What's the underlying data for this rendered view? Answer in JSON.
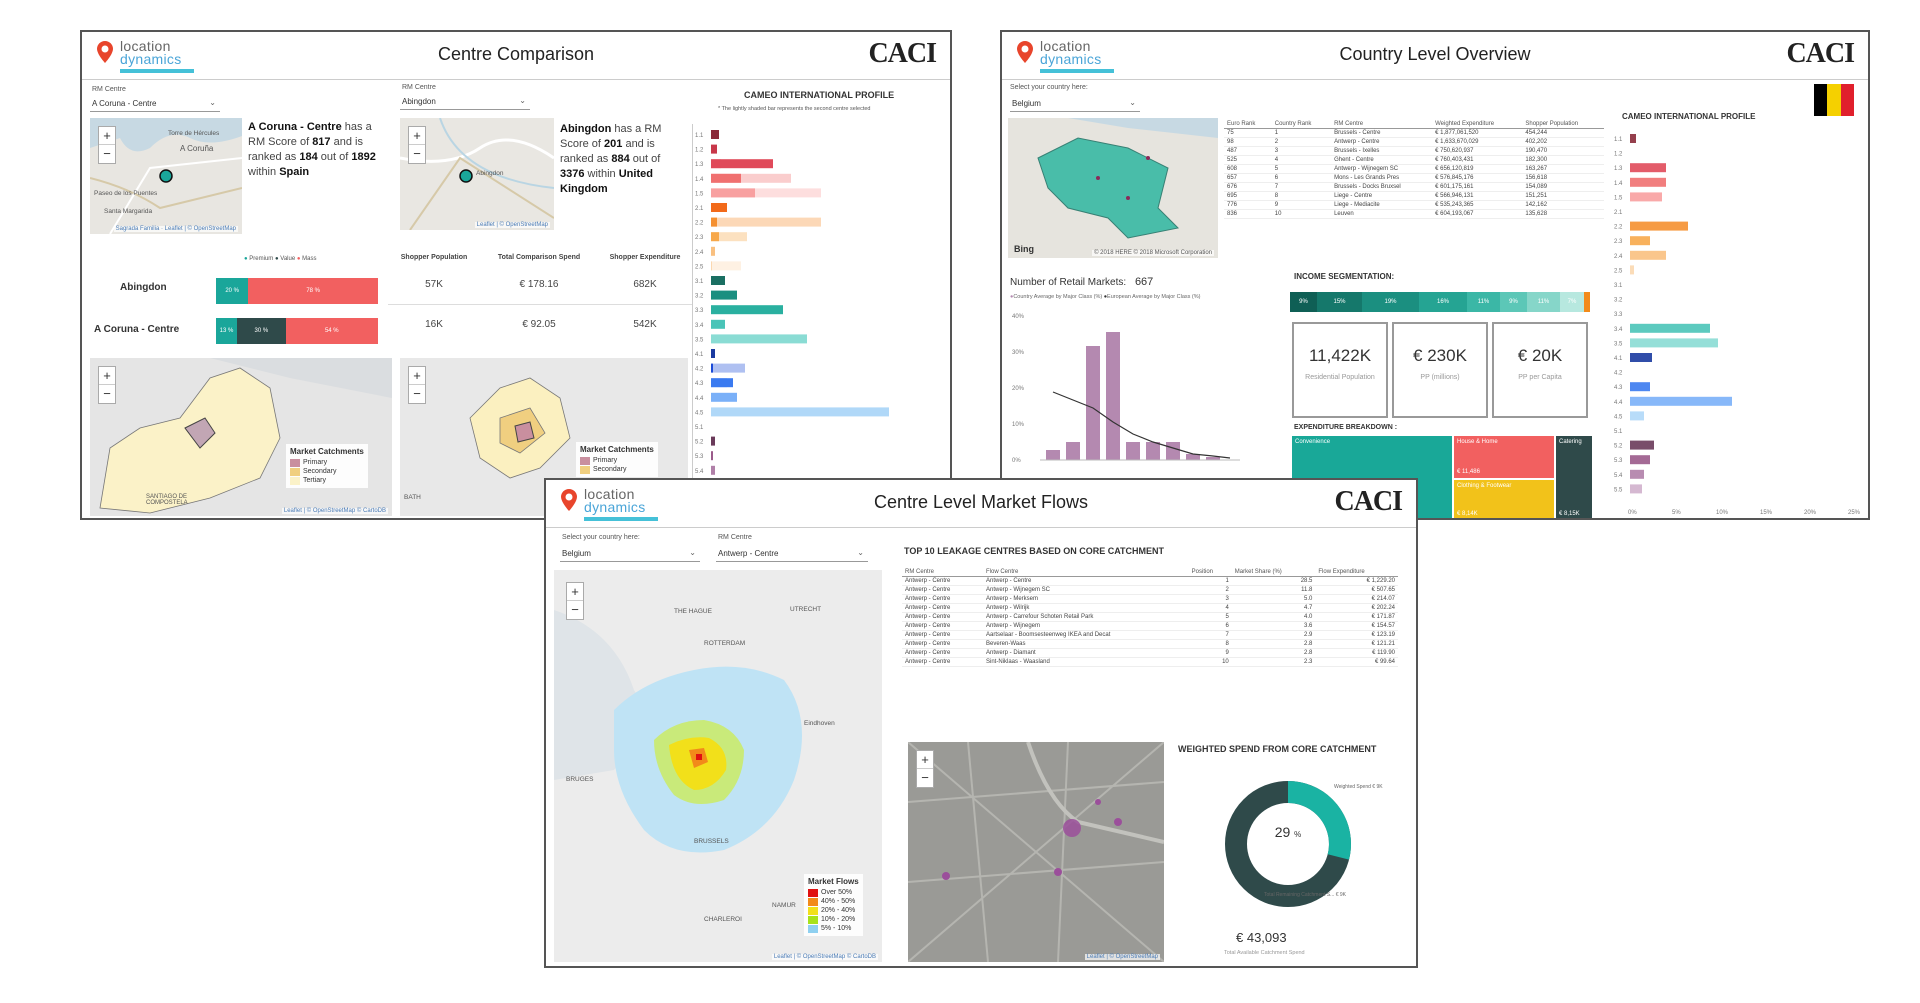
{
  "panel_left": {
    "title": "Centre Comparison",
    "logo_line1": "location",
    "logo_line2": "dynamics",
    "brand": "CACI",
    "dd1_label": "RM Centre",
    "dd1_value": "A Coruna - Centre",
    "dd2_label": "RM Centre",
    "dd2_value": "Abingdon",
    "map_a_labels": [
      "Torre de Hércules",
      "A Coruña",
      "Paseo de los Puentes",
      "Santa Margarida"
    ],
    "map_a_attrib": "Sagrada Familia · Leaflet | © OpenStreetMap",
    "map_b_labels": [
      "Abingdon"
    ],
    "map_b_attrib": "Leaflet | © OpenStreetMap",
    "info_a_name": "A Coruna - Centre",
    "info_a_t1": " has a RM Score of ",
    "info_a_score": "817",
    "info_a_t2": " and is ranked as ",
    "info_a_rank": "184",
    "info_a_t3": " out of ",
    "info_a_total": "1892",
    "info_a_t4": " within ",
    "info_a_country": "Spain",
    "info_b_name": "Abingdon",
    "info_b_t1": " has a RM Score of ",
    "info_b_score": "201",
    "info_b_t2": " and is ranked as ",
    "info_b_rank": "884",
    "info_b_t3": " out of ",
    "info_b_total": "3376",
    "info_b_t4": " within ",
    "info_b_country": "United Kingdom",
    "seg_legend": [
      "Premium",
      "Value",
      "Mass"
    ],
    "seg_rows": [
      {
        "name": "Abingdon",
        "premium_label": "20 %",
        "premium": 20,
        "value_label": "",
        "value": 0,
        "mass_label": "78 %",
        "mass": 78
      },
      {
        "name": "A Coruna - Centre",
        "premium_label": "13 %",
        "premium": 13,
        "value_label": "30 %",
        "value": 30,
        "mass_label": "54 %",
        "mass": 54
      }
    ],
    "stats_headers": [
      "Shopper Population",
      "Total Comparison Spend",
      "Shopper Expenditure"
    ],
    "stats_rows": [
      [
        "57K",
        "€ 178.16",
        "682K"
      ],
      [
        "16K",
        "€ 92.05",
        "542K"
      ]
    ],
    "cameo_title": "CAMEO INTERNATIONAL PROFILE",
    "cameo_note": "* The lightly shaded bar represents the second centre selected",
    "catch_legend_title": "Market Catchments",
    "catch_legend": [
      "Primary",
      "Secondary",
      "Tertiary"
    ],
    "map_c_attrib": "Leaflet | © OpenStreetMap © CartoDB",
    "map_c_label": "SANTIAGO DE COMPOSTELA",
    "map_d_label": "BATH",
    "map_d_legend_title": "Market Catchments",
    "map_d_legend": [
      "Primary",
      "Secondary"
    ]
  },
  "panel_right": {
    "title": "Country Level Overview",
    "logo_line1": "location",
    "logo_line2": "dynamics",
    "brand": "CACI",
    "dd_label": "Select your country here:",
    "dd_value": "Belgium",
    "map_attrib": "© 2018 HERE © 2018 Microsoft Corporation",
    "map_bing": "Bing",
    "table_headers": [
      "Euro Rank",
      "Country Rank",
      "RM Centre",
      "Weighted Expenditure",
      "Shopper Population"
    ],
    "table_rows": [
      [
        "75",
        "1",
        "Brussels - Centre",
        "€ 1,877,061,520",
        "454,244"
      ],
      [
        "98",
        "2",
        "Antwerp - Centre",
        "€ 1,633,670,029",
        "402,202"
      ],
      [
        "487",
        "3",
        "Brussels - Ixelles",
        "€ 750,620,937",
        "190,470"
      ],
      [
        "525",
        "4",
        "Ghent - Centre",
        "€ 760,403,431",
        "182,300"
      ],
      [
        "608",
        "5",
        "Antwerp - Wijnegem SC",
        "€ 656,120,819",
        "163,267"
      ],
      [
        "657",
        "6",
        "Mons - Les Grands Pres",
        "€ 576,845,176",
        "156,618"
      ],
      [
        "676",
        "7",
        "Brussels - Docks Bruxsel",
        "€ 601,175,161",
        "154,089"
      ],
      [
        "695",
        "8",
        "Liege - Centre",
        "€ 566,946,131",
        "151,251"
      ],
      [
        "776",
        "9",
        "Liege - Mediacite",
        "€ 535,243,365",
        "142,162"
      ],
      [
        "836",
        "10",
        "Leuven",
        "€ 604,193,067",
        "135,628"
      ]
    ],
    "retail_markets_label": "Number of Retail Markets:",
    "retail_markets_value": "667",
    "chart_legend": [
      "Country Average by Major Class (%)",
      "European Average by Major Class (%)"
    ],
    "income_title": "INCOME SEGMENTATION:",
    "income_segments": [
      "9%",
      "15%",
      "19%",
      "16%",
      "11%",
      "9%",
      "11%",
      "7%"
    ],
    "kpis": [
      {
        "value": "11,422K",
        "label": "Residential Population"
      },
      {
        "value": "€ 230K",
        "label": "PP (millions)"
      },
      {
        "value": "€ 20K",
        "label": "PP per Capita"
      }
    ],
    "expenditure_title": "EXPENDITURE BREAKDOWN :",
    "exp_blocks": [
      "Convenience",
      "House & Home",
      "Catering",
      "€ 11,486",
      "Clothing & Footwear",
      "€ 8,14K",
      "€ 8,15K"
    ],
    "cameo_title": "CAMEO INTERNATIONAL PROFILE",
    "cameo_axis": [
      "0%",
      "5%",
      "10%",
      "15%",
      "20%",
      "25%"
    ],
    "flag_colors": [
      "#000000",
      "#f5d000",
      "#e0202c"
    ]
  },
  "panel_bottom": {
    "title": "Centre Level Market Flows",
    "logo_line1": "location",
    "logo_line2": "dynamics",
    "brand": "CACI",
    "dd1_label": "Select your country here:",
    "dd1_value": "Belgium",
    "dd2_label": "RM Centre",
    "dd2_value": "Antwerp - Centre",
    "map_labels": [
      "THE HAGUE",
      "UTRECHT",
      "ROTTERDAM",
      "BRUGES",
      "BRUSSELS",
      "CHARLEROI",
      "NAMUR",
      "Eindhoven"
    ],
    "map_attrib": "Leaflet | © OpenStreetMap © CartoDB",
    "flow_legend_title": "Market Flows",
    "flow_legend": [
      "Over 50%",
      "40% - 50%",
      "20% - 40%",
      "10% - 20%",
      "5% - 10%"
    ],
    "flow_colors": [
      "#e01010",
      "#f28a1a",
      "#f2e01a",
      "#a8e21a",
      "#8fd0f0"
    ],
    "leak_title": "TOP 10 LEAKAGE CENTRES  BASED ON CORE CATCHMENT",
    "leak_headers": [
      "RM Centre",
      "Flow Centre",
      "Position",
      "Market Share (%)",
      "Flow Expenditure"
    ],
    "leak_rows": [
      [
        "Antwerp - Centre",
        "Antwerp - Centre",
        "1",
        "28.5",
        "€ 1,229.20"
      ],
      [
        "Antwerp - Centre",
        "Antwerp - Wijnegem SC",
        "2",
        "11.8",
        "€ 507.65"
      ],
      [
        "Antwerp - Centre",
        "Antwerp - Merksem",
        "3",
        "5.0",
        "€ 214.07"
      ],
      [
        "Antwerp - Centre",
        "Antwerp - Wilrijk",
        "4",
        "4.7",
        "€ 202.24"
      ],
      [
        "Antwerp - Centre",
        "Antwerp - Carrefour Schoten Retail Park",
        "5",
        "4.0",
        "€ 171.87"
      ],
      [
        "Antwerp - Centre",
        "Antwerp - Wijnegem",
        "6",
        "3.6",
        "€ 154.57"
      ],
      [
        "Antwerp - Centre",
        "Aartselaar - Boomsesteenweg IKEA and Decat",
        "7",
        "2.9",
        "€ 123.19"
      ],
      [
        "Antwerp - Centre",
        "Beveren-Waas",
        "8",
        "2.8",
        "€ 121.21"
      ],
      [
        "Antwerp - Centre",
        "Antwerp - Diamant",
        "9",
        "2.8",
        "€ 119.90"
      ],
      [
        "Antwerp - Centre",
        "Sint-Niklaas - Waasland",
        "10",
        "2.3",
        "€ 99.64"
      ]
    ],
    "map2_attrib": "Leaflet | © OpenStreetMap",
    "spend_title": "WEIGHTED SPEND FROM CORE CATCHMENT",
    "donut_pct": "29",
    "donut_pct_unit": "%",
    "donut_fraction": 0.29,
    "donut_label_a": "Weighted Spend € 9K",
    "donut_label_b": "Total Remaining Catchment S... € 9K",
    "total_value": "€ 43,093",
    "total_label": "Total Available Catchment Spend"
  }
}
